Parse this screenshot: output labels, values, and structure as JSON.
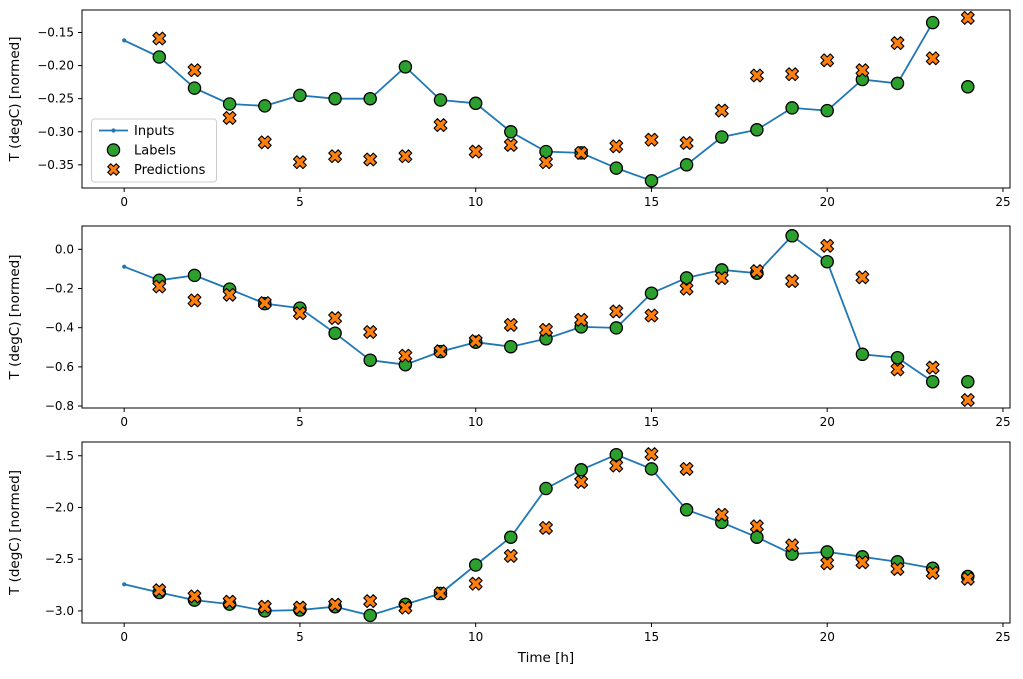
{
  "figure": {
    "xlabel": "Time [h]",
    "ylabel": "T (degC) [normed]"
  },
  "legend": {
    "visible": true,
    "position": "center-left-of-first-subplot",
    "entries": [
      "Inputs",
      "Labels",
      "Predictions"
    ]
  },
  "colors": {
    "inputs_line": "#1f77b4",
    "labels_marker": "#2ca02c",
    "predictions_marker": "#ff7f0e",
    "marker_edge": "#000000",
    "legend_border": "#cccccc",
    "axes": "#000000",
    "text": "#000000",
    "background": "#ffffff"
  },
  "chart_data": [
    {
      "id": "subplot-1",
      "type": "line",
      "title": "",
      "xlabel": "",
      "ylabel": "T (degC) [normed]",
      "xlim": [
        -1.2,
        25.2
      ],
      "ylim": [
        -0.385,
        -0.116
      ],
      "xticks": [
        0,
        5,
        10,
        15,
        20,
        25
      ],
      "yticks": [
        -0.15,
        -0.2,
        -0.25,
        -0.3,
        -0.35
      ],
      "xtick_decimals": 0,
      "ytick_decimals": 2,
      "grid": false,
      "legend_visible": true,
      "series": [
        {
          "name": "Inputs",
          "marker": "line-dot",
          "color": "#1f77b4",
          "x": [
            0,
            1,
            2,
            3,
            4,
            5,
            6,
            7,
            8,
            9,
            10,
            11,
            12,
            13,
            14,
            15,
            16,
            17,
            18,
            19,
            20,
            21,
            22,
            23
          ],
          "y": [
            -0.162,
            -0.187,
            -0.234,
            -0.258,
            -0.261,
            -0.245,
            -0.25,
            -0.25,
            -0.202,
            -0.252,
            -0.257,
            -0.3,
            -0.33,
            -0.332,
            -0.355,
            -0.374,
            -0.35,
            -0.308,
            -0.297,
            -0.264,
            -0.268,
            -0.221,
            -0.227,
            -0.135
          ]
        },
        {
          "name": "Labels",
          "marker": "circle",
          "color": "#2ca02c",
          "edge": "#000000",
          "x": [
            1,
            2,
            3,
            4,
            5,
            6,
            7,
            8,
            9,
            10,
            11,
            12,
            13,
            14,
            15,
            16,
            17,
            18,
            19,
            20,
            21,
            22,
            23,
            24
          ],
          "y": [
            -0.187,
            -0.234,
            -0.258,
            -0.261,
            -0.245,
            -0.25,
            -0.25,
            -0.202,
            -0.252,
            -0.257,
            -0.3,
            -0.33,
            -0.332,
            -0.355,
            -0.374,
            -0.35,
            -0.308,
            -0.297,
            -0.264,
            -0.268,
            -0.221,
            -0.227,
            -0.135,
            -0.232
          ]
        },
        {
          "name": "Predictions",
          "marker": "x",
          "color": "#ff7f0e",
          "edge": "#000000",
          "x": [
            1,
            2,
            3,
            4,
            5,
            6,
            7,
            8,
            9,
            10,
            11,
            12,
            13,
            14,
            15,
            16,
            17,
            18,
            19,
            20,
            21,
            22,
            23,
            24
          ],
          "y": [
            -0.159,
            -0.207,
            -0.279,
            -0.316,
            -0.346,
            -0.337,
            -0.342,
            -0.337,
            -0.29,
            -0.33,
            -0.32,
            -0.346,
            -0.332,
            -0.322,
            -0.312,
            -0.317,
            -0.268,
            -0.215,
            -0.213,
            -0.192,
            -0.207,
            -0.166,
            -0.189,
            -0.128
          ]
        }
      ]
    },
    {
      "id": "subplot-2",
      "type": "line",
      "title": "",
      "xlabel": "",
      "ylabel": "T (degC) [normed]",
      "xlim": [
        -1.2,
        25.2
      ],
      "ylim": [
        -0.81,
        0.119
      ],
      "xticks": [
        0,
        5,
        10,
        15,
        20,
        25
      ],
      "yticks": [
        0.0,
        -0.2,
        -0.4,
        -0.6,
        -0.8
      ],
      "xtick_decimals": 0,
      "ytick_decimals": 1,
      "grid": false,
      "legend_visible": false,
      "series": [
        {
          "name": "Inputs",
          "marker": "line-dot",
          "color": "#1f77b4",
          "x": [
            0,
            1,
            2,
            3,
            4,
            5,
            6,
            7,
            8,
            9,
            10,
            11,
            12,
            13,
            14,
            15,
            16,
            17,
            18,
            19,
            20,
            21,
            22,
            23
          ],
          "y": [
            -0.089,
            -0.158,
            -0.133,
            -0.203,
            -0.277,
            -0.3,
            -0.428,
            -0.566,
            -0.589,
            -0.522,
            -0.474,
            -0.497,
            -0.457,
            -0.396,
            -0.401,
            -0.224,
            -0.146,
            -0.105,
            -0.122,
            0.069,
            -0.063,
            -0.536,
            -0.553,
            -0.676
          ]
        },
        {
          "name": "Labels",
          "marker": "circle",
          "color": "#2ca02c",
          "edge": "#000000",
          "x": [
            1,
            2,
            3,
            4,
            5,
            6,
            7,
            8,
            9,
            10,
            11,
            12,
            13,
            14,
            15,
            16,
            17,
            18,
            19,
            20,
            21,
            22,
            23,
            24
          ],
          "y": [
            -0.158,
            -0.133,
            -0.203,
            -0.277,
            -0.3,
            -0.428,
            -0.566,
            -0.589,
            -0.522,
            -0.474,
            -0.497,
            -0.457,
            -0.396,
            -0.401,
            -0.224,
            -0.146,
            -0.105,
            -0.122,
            0.069,
            -0.063,
            -0.536,
            -0.553,
            -0.676,
            -0.676
          ]
        },
        {
          "name": "Predictions",
          "marker": "x",
          "color": "#ff7f0e",
          "edge": "#000000",
          "x": [
            1,
            2,
            3,
            4,
            5,
            6,
            7,
            8,
            9,
            10,
            11,
            12,
            13,
            14,
            15,
            16,
            17,
            18,
            19,
            20,
            21,
            22,
            23,
            24
          ],
          "y": [
            -0.19,
            -0.261,
            -0.232,
            -0.274,
            -0.326,
            -0.351,
            -0.422,
            -0.543,
            -0.52,
            -0.468,
            -0.386,
            -0.411,
            -0.36,
            -0.317,
            -0.338,
            -0.201,
            -0.147,
            -0.111,
            -0.162,
            0.018,
            -0.143,
            -0.613,
            -0.604,
            -0.769
          ]
        }
      ]
    },
    {
      "id": "subplot-3",
      "type": "line",
      "title": "",
      "xlabel": "Time [h]",
      "ylabel": "T (degC) [normed]",
      "xlim": [
        -1.2,
        25.2
      ],
      "ylim": [
        -3.117,
        -1.367
      ],
      "xticks": [
        0,
        5,
        10,
        15,
        20,
        25
      ],
      "yticks": [
        -1.5,
        -2.0,
        -2.5,
        -3.0
      ],
      "xtick_decimals": 0,
      "ytick_decimals": 1,
      "grid": false,
      "legend_visible": false,
      "series": [
        {
          "name": "Inputs",
          "marker": "line-dot",
          "color": "#1f77b4",
          "x": [
            0,
            1,
            2,
            3,
            4,
            5,
            6,
            7,
            8,
            9,
            10,
            11,
            12,
            13,
            14,
            15,
            16,
            17,
            18,
            19,
            20,
            21,
            22,
            23
          ],
          "y": [
            -2.743,
            -2.822,
            -2.896,
            -2.934,
            -3.0,
            -2.991,
            -2.959,
            -3.044,
            -2.937,
            -2.832,
            -2.556,
            -2.287,
            -1.817,
            -1.636,
            -1.49,
            -1.627,
            -2.023,
            -2.144,
            -2.287,
            -2.451,
            -2.43,
            -2.477,
            -2.525,
            -2.588
          ]
        },
        {
          "name": "Labels",
          "marker": "circle",
          "color": "#2ca02c",
          "edge": "#000000",
          "x": [
            1,
            2,
            3,
            4,
            5,
            6,
            7,
            8,
            9,
            10,
            11,
            12,
            13,
            14,
            15,
            16,
            17,
            18,
            19,
            20,
            21,
            22,
            23,
            24
          ],
          "y": [
            -2.822,
            -2.896,
            -2.934,
            -3.0,
            -2.991,
            -2.959,
            -3.044,
            -2.937,
            -2.832,
            -2.556,
            -2.287,
            -1.817,
            -1.636,
            -1.49,
            -1.627,
            -2.023,
            -2.144,
            -2.287,
            -2.451,
            -2.43,
            -2.477,
            -2.525,
            -2.588,
            -2.667
          ]
        },
        {
          "name": "Predictions",
          "marker": "x",
          "color": "#ff7f0e",
          "edge": "#000000",
          "x": [
            1,
            2,
            3,
            4,
            5,
            6,
            7,
            8,
            9,
            10,
            11,
            12,
            13,
            14,
            15,
            16,
            17,
            18,
            19,
            20,
            21,
            22,
            23,
            24
          ],
          "y": [
            -2.8,
            -2.86,
            -2.911,
            -2.959,
            -2.968,
            -2.94,
            -2.905,
            -2.968,
            -2.83,
            -2.737,
            -2.468,
            -2.198,
            -1.754,
            -1.595,
            -1.484,
            -1.627,
            -2.071,
            -2.182,
            -2.366,
            -2.54,
            -2.53,
            -2.594,
            -2.632,
            -2.69
          ]
        }
      ]
    }
  ]
}
